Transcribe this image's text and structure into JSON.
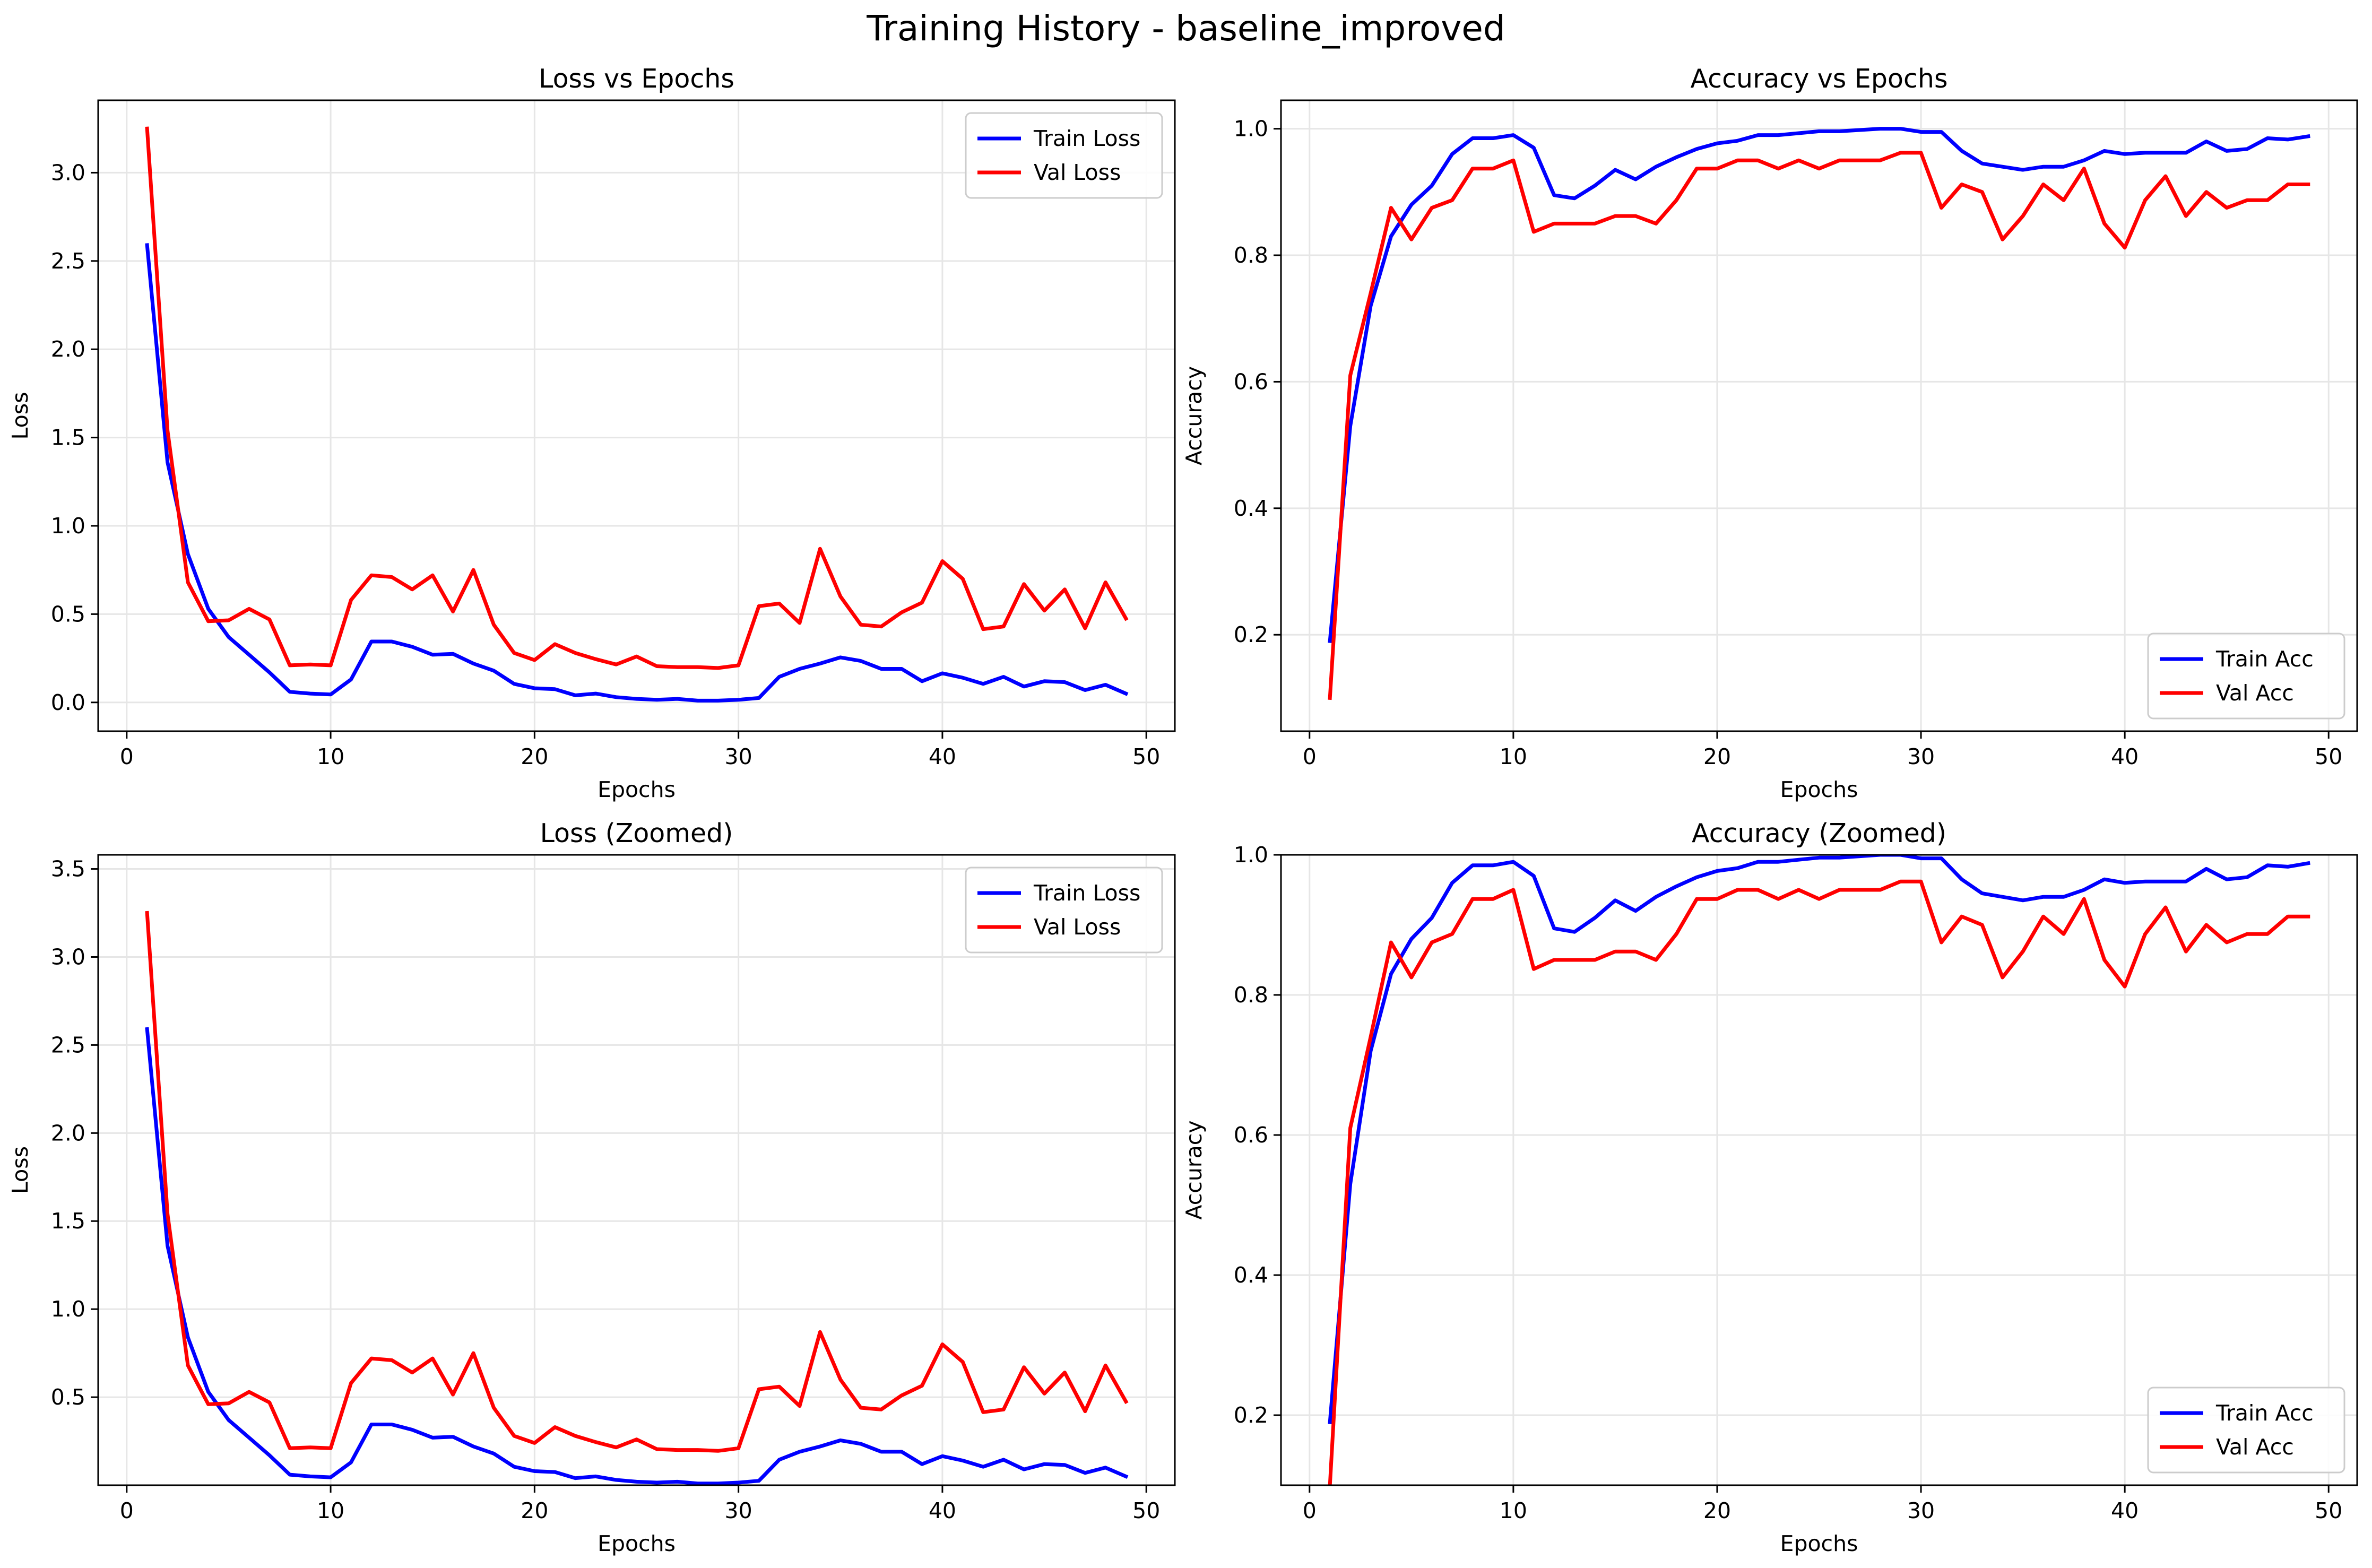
{
  "figure": {
    "title": "Training History - baseline_improved"
  },
  "colors": {
    "train": "#0000ff",
    "val": "#ff0000",
    "grid": "#e6e6e6",
    "axis": "#000000"
  },
  "chart_data": [
    {
      "type": "line",
      "title": "Loss vs Epochs",
      "xlabel": "Epochs",
      "ylabel": "Loss",
      "xlim": [
        -1.4,
        51.4
      ],
      "ylim": [
        -0.163,
        3.41
      ],
      "xticks": [
        0,
        10,
        20,
        30,
        40,
        50
      ],
      "yticks": [
        0.0,
        0.5,
        1.0,
        1.5,
        2.0,
        2.5,
        3.0
      ],
      "ytick_labels": [
        "0.0",
        "0.5",
        "1.0",
        "1.5",
        "2.0",
        "2.5",
        "3.0"
      ],
      "grid": true,
      "legend": "top-right",
      "x": [
        1,
        2,
        3,
        4,
        5,
        6,
        7,
        8,
        9,
        10,
        11,
        12,
        13,
        14,
        15,
        16,
        17,
        18,
        19,
        20,
        21,
        22,
        23,
        24,
        25,
        26,
        27,
        28,
        29,
        30,
        31,
        32,
        33,
        34,
        35,
        36,
        37,
        38,
        39,
        40,
        41,
        42,
        43,
        44,
        45,
        46,
        47,
        48,
        49
      ],
      "series": [
        {
          "name": "Train Loss",
          "color": "#0000ff",
          "values": [
            2.59,
            1.36,
            0.84,
            0.53,
            0.37,
            0.27,
            0.17,
            0.06,
            0.05,
            0.045,
            0.13,
            0.345,
            0.345,
            0.315,
            0.27,
            0.275,
            0.22,
            0.18,
            0.105,
            0.08,
            0.075,
            0.04,
            0.05,
            0.03,
            0.02,
            0.015,
            0.02,
            0.01,
            0.01,
            0.015,
            0.025,
            0.145,
            0.19,
            0.22,
            0.255,
            0.235,
            0.19,
            0.19,
            0.12,
            0.165,
            0.14,
            0.105,
            0.145,
            0.09,
            0.12,
            0.115,
            0.07,
            0.1,
            0.05
          ]
        },
        {
          "name": "Val Loss",
          "color": "#ff0000",
          "values": [
            3.25,
            1.54,
            0.68,
            0.46,
            0.465,
            0.53,
            0.47,
            0.21,
            0.215,
            0.21,
            0.58,
            0.72,
            0.71,
            0.64,
            0.72,
            0.515,
            0.75,
            0.44,
            0.28,
            0.24,
            0.33,
            0.28,
            0.245,
            0.215,
            0.26,
            0.205,
            0.2,
            0.2,
            0.195,
            0.21,
            0.545,
            0.56,
            0.45,
            0.87,
            0.6,
            0.44,
            0.43,
            0.51,
            0.565,
            0.8,
            0.7,
            0.415,
            0.43,
            0.67,
            0.52,
            0.64,
            0.42,
            0.68,
            0.475
          ]
        }
      ]
    },
    {
      "type": "line",
      "title": "Accuracy vs Epochs",
      "xlabel": "Epochs",
      "ylabel": "Accuracy",
      "xlim": [
        -1.4,
        51.4
      ],
      "ylim": [
        0.0475,
        1.045
      ],
      "xticks": [
        0,
        10,
        20,
        30,
        40,
        50
      ],
      "yticks": [
        0.2,
        0.4,
        0.6,
        0.8,
        1.0
      ],
      "ytick_labels": [
        "0.2",
        "0.4",
        "0.6",
        "0.8",
        "1.0"
      ],
      "grid": true,
      "legend": "bottom-right",
      "x": [
        1,
        2,
        3,
        4,
        5,
        6,
        7,
        8,
        9,
        10,
        11,
        12,
        13,
        14,
        15,
        16,
        17,
        18,
        19,
        20,
        21,
        22,
        23,
        24,
        25,
        26,
        27,
        28,
        29,
        30,
        31,
        32,
        33,
        34,
        35,
        36,
        37,
        38,
        39,
        40,
        41,
        42,
        43,
        44,
        45,
        46,
        47,
        48,
        49
      ],
      "series": [
        {
          "name": "Train Acc",
          "color": "#0000ff",
          "values": [
            0.19,
            0.53,
            0.72,
            0.83,
            0.88,
            0.91,
            0.96,
            0.985,
            0.985,
            0.99,
            0.97,
            0.895,
            0.89,
            0.91,
            0.935,
            0.92,
            0.94,
            0.955,
            0.968,
            0.977,
            0.981,
            0.99,
            0.99,
            0.993,
            0.996,
            0.996,
            0.998,
            1.0,
            1.0,
            0.995,
            0.995,
            0.965,
            0.945,
            0.94,
            0.935,
            0.94,
            0.94,
            0.95,
            0.965,
            0.96,
            0.962,
            0.962,
            0.962,
            0.98,
            0.965,
            0.968,
            0.985,
            0.983,
            0.988
          ]
        },
        {
          "name": "Val Acc",
          "color": "#ff0000",
          "values": [
            0.1,
            0.61,
            0.74,
            0.875,
            0.825,
            0.875,
            0.887,
            0.937,
            0.937,
            0.95,
            0.837,
            0.85,
            0.85,
            0.85,
            0.862,
            0.862,
            0.85,
            0.887,
            0.937,
            0.937,
            0.95,
            0.95,
            0.937,
            0.95,
            0.937,
            0.95,
            0.95,
            0.95,
            0.962,
            0.962,
            0.875,
            0.912,
            0.9,
            0.825,
            0.862,
            0.912,
            0.887,
            0.937,
            0.85,
            0.812,
            0.887,
            0.925,
            0.862,
            0.9,
            0.875,
            0.887,
            0.887,
            0.912,
            0.912
          ]
        }
      ]
    },
    {
      "type": "line",
      "title": "Loss (Zoomed)",
      "xlabel": "Epochs",
      "ylabel": "Loss",
      "xlim": [
        -1.4,
        51.4
      ],
      "ylim": [
        0.0,
        3.58
      ],
      "xticks": [
        0,
        10,
        20,
        30,
        40,
        50
      ],
      "yticks": [
        0.5,
        1.0,
        1.5,
        2.0,
        2.5,
        3.0,
        3.5
      ],
      "ytick_labels": [
        "0.5",
        "1.0",
        "1.5",
        "2.0",
        "2.5",
        "3.0",
        "3.5"
      ],
      "grid": true,
      "legend": "top-right",
      "x": [
        1,
        2,
        3,
        4,
        5,
        6,
        7,
        8,
        9,
        10,
        11,
        12,
        13,
        14,
        15,
        16,
        17,
        18,
        19,
        20,
        21,
        22,
        23,
        24,
        25,
        26,
        27,
        28,
        29,
        30,
        31,
        32,
        33,
        34,
        35,
        36,
        37,
        38,
        39,
        40,
        41,
        42,
        43,
        44,
        45,
        46,
        47,
        48,
        49
      ],
      "series": [
        {
          "name": "Train Loss",
          "color": "#0000ff",
          "values": [
            2.59,
            1.36,
            0.84,
            0.53,
            0.37,
            0.27,
            0.17,
            0.06,
            0.05,
            0.045,
            0.13,
            0.345,
            0.345,
            0.315,
            0.27,
            0.275,
            0.22,
            0.18,
            0.105,
            0.08,
            0.075,
            0.04,
            0.05,
            0.03,
            0.02,
            0.015,
            0.02,
            0.01,
            0.01,
            0.015,
            0.025,
            0.145,
            0.19,
            0.22,
            0.255,
            0.235,
            0.19,
            0.19,
            0.12,
            0.165,
            0.14,
            0.105,
            0.145,
            0.09,
            0.12,
            0.115,
            0.07,
            0.1,
            0.05
          ]
        },
        {
          "name": "Val Loss",
          "color": "#ff0000",
          "values": [
            3.25,
            1.54,
            0.68,
            0.46,
            0.465,
            0.53,
            0.47,
            0.21,
            0.215,
            0.21,
            0.58,
            0.72,
            0.71,
            0.64,
            0.72,
            0.515,
            0.75,
            0.44,
            0.28,
            0.24,
            0.33,
            0.28,
            0.245,
            0.215,
            0.26,
            0.205,
            0.2,
            0.2,
            0.195,
            0.21,
            0.545,
            0.56,
            0.45,
            0.87,
            0.6,
            0.44,
            0.43,
            0.51,
            0.565,
            0.8,
            0.7,
            0.415,
            0.43,
            0.67,
            0.52,
            0.64,
            0.42,
            0.68,
            0.475
          ]
        }
      ]
    },
    {
      "type": "line",
      "title": "Accuracy (Zoomed)",
      "xlabel": "Epochs",
      "ylabel": "Accuracy",
      "xlim": [
        -1.4,
        51.4
      ],
      "ylim": [
        0.1,
        1.0
      ],
      "xticks": [
        0,
        10,
        20,
        30,
        40,
        50
      ],
      "yticks": [
        0.2,
        0.4,
        0.6,
        0.8,
        1.0
      ],
      "ytick_labels": [
        "0.2",
        "0.4",
        "0.6",
        "0.8",
        "1.0"
      ],
      "grid": true,
      "legend": "bottom-right",
      "x": [
        1,
        2,
        3,
        4,
        5,
        6,
        7,
        8,
        9,
        10,
        11,
        12,
        13,
        14,
        15,
        16,
        17,
        18,
        19,
        20,
        21,
        22,
        23,
        24,
        25,
        26,
        27,
        28,
        29,
        30,
        31,
        32,
        33,
        34,
        35,
        36,
        37,
        38,
        39,
        40,
        41,
        42,
        43,
        44,
        45,
        46,
        47,
        48,
        49
      ],
      "series": [
        {
          "name": "Train Acc",
          "color": "#0000ff",
          "values": [
            0.19,
            0.53,
            0.72,
            0.83,
            0.88,
            0.91,
            0.96,
            0.985,
            0.985,
            0.99,
            0.97,
            0.895,
            0.89,
            0.91,
            0.935,
            0.92,
            0.94,
            0.955,
            0.968,
            0.977,
            0.981,
            0.99,
            0.99,
            0.993,
            0.996,
            0.996,
            0.998,
            1.0,
            1.0,
            0.995,
            0.995,
            0.965,
            0.945,
            0.94,
            0.935,
            0.94,
            0.94,
            0.95,
            0.965,
            0.96,
            0.962,
            0.962,
            0.962,
            0.98,
            0.965,
            0.968,
            0.985,
            0.983,
            0.988
          ]
        },
        {
          "name": "Val Acc",
          "color": "#ff0000",
          "values": [
            0.1,
            0.61,
            0.74,
            0.875,
            0.825,
            0.875,
            0.887,
            0.937,
            0.937,
            0.95,
            0.837,
            0.85,
            0.85,
            0.85,
            0.862,
            0.862,
            0.85,
            0.887,
            0.937,
            0.937,
            0.95,
            0.95,
            0.937,
            0.95,
            0.937,
            0.95,
            0.95,
            0.95,
            0.962,
            0.962,
            0.875,
            0.912,
            0.9,
            0.825,
            0.862,
            0.912,
            0.887,
            0.937,
            0.85,
            0.812,
            0.887,
            0.925,
            0.862,
            0.9,
            0.875,
            0.887,
            0.887,
            0.912,
            0.912
          ]
        }
      ]
    }
  ]
}
